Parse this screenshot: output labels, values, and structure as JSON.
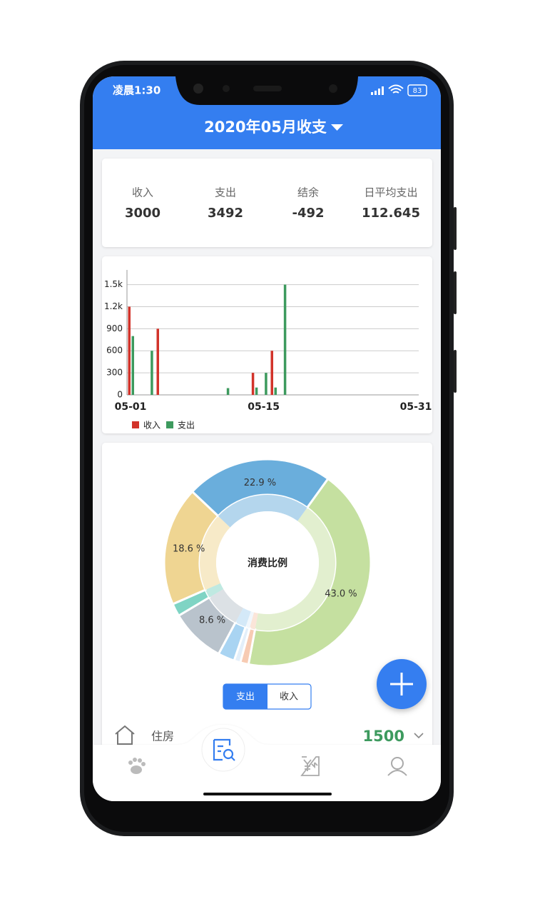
{
  "status_bar": {
    "time": "凌晨1:30",
    "battery": "83"
  },
  "header": {
    "title": "2020年05月收支"
  },
  "summary": [
    {
      "label": "收入",
      "value": 3000
    },
    {
      "label": "支出",
      "value": 3492
    },
    {
      "label": "结余",
      "value": -492
    },
    {
      "label": "日平均支出",
      "value": 112.645
    }
  ],
  "bar_chart": {
    "type": "bar",
    "categories": [
      "05-01",
      null,
      null,
      null,
      null,
      null,
      null,
      null,
      null,
      null,
      null,
      null,
      null,
      null,
      "05-15",
      null,
      null,
      null,
      null,
      null,
      null,
      null,
      null,
      null,
      null,
      null,
      null,
      null,
      null,
      null,
      "05-31"
    ],
    "series": [
      {
        "name": "收入",
        "color": "#d2332a",
        "values": [
          1200,
          null,
          null,
          900,
          null,
          null,
          null,
          null,
          null,
          null,
          null,
          null,
          null,
          300,
          null,
          600,
          null,
          null,
          null,
          null,
          null,
          null,
          null,
          null,
          null,
          null,
          null,
          null,
          null,
          null,
          null
        ]
      },
      {
        "name": "支出",
        "color": "#3d9a5e",
        "values": [
          800,
          null,
          600,
          null,
          null,
          null,
          null,
          null,
          null,
          null,
          92,
          null,
          null,
          100,
          300,
          100,
          1500,
          null,
          null,
          null,
          null,
          null,
          null,
          null,
          null,
          null,
          null,
          null,
          null,
          null,
          null
        ]
      }
    ],
    "ylim": [
      0,
      1700
    ],
    "yticks": [
      0,
      300,
      600,
      900,
      {
        "value": 1200,
        "label": "1.2k"
      },
      {
        "value": 1500,
        "label": "1.5k"
      }
    ],
    "grid": true
  },
  "pie_chart": {
    "type": "donut",
    "title": "消费比例",
    "values": [
      43.0,
      1.3,
      1.0,
      2.6,
      8.6,
      2.0,
      18.6,
      22.9
    ],
    "value_labels": [
      "43.0 %",
      null,
      null,
      null,
      "8.6 %",
      null,
      "18.6 %",
      "22.9 %"
    ],
    "colors": [
      "#c5e0a0",
      "#f7cbb3",
      "#e3effa",
      "#a9d4f2",
      "#b9c3cc",
      "#7fd4c4",
      "#efd592",
      "#6aaedc"
    ]
  },
  "toggle": [
    "支出",
    "收入"
  ],
  "list": [
    {
      "label": "住房",
      "value": 1500
    }
  ]
}
